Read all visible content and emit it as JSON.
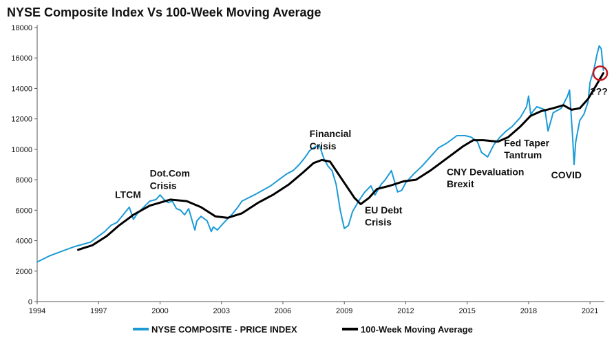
{
  "chart_data": {
    "type": "line",
    "title": "NYSE Composite Index Vs 100-Week Moving Average",
    "xlabel": "",
    "ylabel": "",
    "xlim": [
      1994,
      2021.7
    ],
    "ylim": [
      0,
      18000
    ],
    "x_ticks": [
      "1994",
      "1997",
      "2000",
      "2003",
      "2006",
      "2009",
      "2012",
      "2015",
      "2018",
      "2021"
    ],
    "y_ticks": [
      "0",
      "2000",
      "4000",
      "6000",
      "8000",
      "10000",
      "12000",
      "14000",
      "16000",
      "18000"
    ],
    "grid": false,
    "legend_position": "bottom",
    "colors": {
      "price": "#1b9ad6",
      "ma": "#000000",
      "circle": "#c0161b"
    },
    "series": [
      {
        "name": "NYSE COMPOSITE - PRICE INDEX",
        "x": [
          1994.0,
          1994.3,
          1994.6,
          1995.0,
          1995.4,
          1995.8,
          1996.2,
          1996.6,
          1997.0,
          1997.3,
          1997.6,
          1997.9,
          1998.2,
          1998.5,
          1998.7,
          1998.9,
          1999.2,
          1999.5,
          1999.8,
          2000.0,
          2000.2,
          2000.4,
          2000.6,
          2000.8,
          2001.0,
          2001.2,
          2001.4,
          2001.7,
          2001.8,
          2002.0,
          2002.3,
          2002.5,
          2002.6,
          2002.8,
          2003.0,
          2003.2,
          2003.5,
          2003.8,
          2004.0,
          2004.3,
          2004.6,
          2005.0,
          2005.4,
          2005.8,
          2006.2,
          2006.5,
          2006.8,
          2007.1,
          2007.3,
          2007.6,
          2007.8,
          2008.0,
          2008.2,
          2008.4,
          2008.6,
          2008.8,
          2008.9,
          2009.0,
          2009.2,
          2009.4,
          2009.7,
          2010.0,
          2010.3,
          2010.5,
          2010.8,
          2011.0,
          2011.3,
          2011.6,
          2011.8,
          2012.0,
          2012.4,
          2012.8,
          2013.2,
          2013.6,
          2014.0,
          2014.5,
          2014.9,
          2015.2,
          2015.5,
          2015.7,
          2016.0,
          2016.3,
          2016.6,
          2016.9,
          2017.2,
          2017.6,
          2017.9,
          2018.0,
          2018.1,
          2018.4,
          2018.8,
          2018.95,
          2019.2,
          2019.6,
          2019.9,
          2020.0,
          2020.15,
          2020.22,
          2020.3,
          2020.5,
          2020.7,
          2020.9,
          2021.0,
          2021.2,
          2021.35,
          2021.45,
          2021.55,
          2021.65
        ],
        "values": [
          2600,
          2800,
          3000,
          3200,
          3400,
          3600,
          3750,
          3900,
          4300,
          4600,
          5000,
          5200,
          5700,
          6200,
          5400,
          5800,
          6200,
          6600,
          6700,
          7000,
          6700,
          6500,
          6600,
          6100,
          6000,
          5700,
          6100,
          4700,
          5300,
          5600,
          5300,
          4600,
          4900,
          4700,
          5000,
          5300,
          5700,
          6200,
          6600,
          6800,
          7000,
          7300,
          7600,
          8000,
          8400,
          8600,
          9000,
          9500,
          9900,
          10200,
          10200,
          9400,
          8900,
          8600,
          7700,
          6000,
          5400,
          4800,
          5000,
          5900,
          6600,
          7200,
          7600,
          7000,
          7700,
          8000,
          8600,
          7200,
          7300,
          7800,
          8400,
          8900,
          9500,
          10100,
          10400,
          10900,
          10900,
          10800,
          10500,
          9800,
          9500,
          10300,
          10800,
          11200,
          11500,
          12100,
          12800,
          13500,
          12300,
          12800,
          12600,
          11200,
          12400,
          12700,
          13500,
          13900,
          10800,
          9000,
          10500,
          11900,
          12300,
          13100,
          14400,
          15300,
          16300,
          16800,
          16600,
          15200
        ]
      },
      {
        "name": "100-Week Moving Average",
        "x": [
          1996.0,
          1996.7,
          1997.4,
          1998.0,
          1998.7,
          1999.5,
          2000.5,
          2001.3,
          2002.0,
          2002.7,
          2003.3,
          2004.0,
          2004.8,
          2005.5,
          2006.3,
          2007.0,
          2007.5,
          2007.9,
          2008.3,
          2008.9,
          2009.5,
          2009.8,
          2010.2,
          2010.6,
          2011.2,
          2011.9,
          2012.5,
          2013.2,
          2014.0,
          2014.8,
          2015.3,
          2015.8,
          2016.5,
          2017.0,
          2017.6,
          2018.1,
          2018.6,
          2019.2,
          2019.7,
          2020.1,
          2020.5,
          2020.9,
          2021.3,
          2021.65
        ],
        "values": [
          3400,
          3700,
          4300,
          5000,
          5700,
          6300,
          6700,
          6600,
          6200,
          5600,
          5500,
          5800,
          6500,
          7000,
          7700,
          8500,
          9100,
          9300,
          9200,
          8000,
          6800,
          6400,
          6800,
          7400,
          7600,
          7900,
          8000,
          8600,
          9400,
          10200,
          10600,
          10600,
          10500,
          10800,
          11500,
          12200,
          12500,
          12700,
          12900,
          12600,
          12700,
          13300,
          14200,
          15000
        ]
      }
    ],
    "annotations": [
      {
        "text": "LTCM",
        "x": 1997.8,
        "y": 6800
      },
      {
        "text": "Dot.Com",
        "x": 1999.5,
        "y": 8200
      },
      {
        "text": "Crisis",
        "x": 1999.5,
        "y": 7400
      },
      {
        "text": "Financial",
        "x": 2007.3,
        "y": 10800
      },
      {
        "text": "Crisis",
        "x": 2007.3,
        "y": 10000
      },
      {
        "text": "EU Debt",
        "x": 2010.0,
        "y": 5800
      },
      {
        "text": "Crisis",
        "x": 2010.0,
        "y": 5000
      },
      {
        "text": "CNY Devaluation",
        "x": 2014.0,
        "y": 8300
      },
      {
        "text": "Brexit",
        "x": 2014.0,
        "y": 7500
      },
      {
        "text": "Fed Taper",
        "x": 2016.8,
        "y": 10200
      },
      {
        "text": "Tantrum",
        "x": 2016.8,
        "y": 9400
      },
      {
        "text": "COVID",
        "x": 2019.1,
        "y": 8100
      },
      {
        "text": "???",
        "x": 2021.0,
        "y": 13600
      }
    ],
    "highlight_circle": {
      "x": 2021.5,
      "y": 15000
    }
  }
}
